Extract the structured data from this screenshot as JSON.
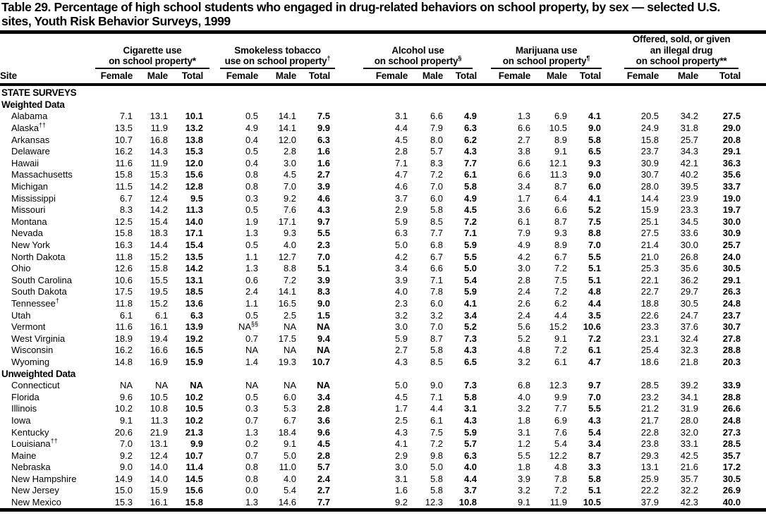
{
  "title": {
    "line1": "Table 29. Percentage of high school students who engaged in drug-related behaviors on school property, by sex — selected U.S.",
    "line2": "sites, Youth Risk Behavior Surveys, 1999"
  },
  "table": {
    "site_header": "Site",
    "sub_headers": [
      "Female",
      "Male",
      "Total"
    ],
    "groups": [
      {
        "name": "cigarette-use",
        "lines": [
          "Cigarette use",
          "on school property*"
        ]
      },
      {
        "name": "smokeless-tobacco-use",
        "lines": [
          "Smokeless tobacco",
          "use on school property^†"
        ]
      },
      {
        "name": "alcohol-use",
        "lines": [
          "Alcohol use",
          "on school property^§"
        ]
      },
      {
        "name": "marijuana-use",
        "lines": [
          "Marijuana use",
          "on school property^¶"
        ]
      },
      {
        "name": "offered-sold-given-illegal-drug",
        "lines": [
          "Offered, sold, or given",
          "an illegal drug",
          "on school property**"
        ]
      }
    ],
    "rows": [
      {
        "type": "section",
        "label": "STATE SURVEYS"
      },
      {
        "type": "section",
        "label": "Weighted Data"
      },
      {
        "type": "data",
        "site": "Alabama",
        "values": [
          "7.1",
          "13.1",
          "10.1",
          "0.5",
          "14.1",
          "7.5",
          "3.1",
          "6.6",
          "4.9",
          "1.3",
          "6.9",
          "4.1",
          "20.5",
          "34.2",
          "27.5"
        ]
      },
      {
        "type": "data",
        "site": "Alaska^††",
        "values": [
          "13.5",
          "11.9",
          "13.2",
          "4.9",
          "14.1",
          "9.9",
          "4.4",
          "7.9",
          "6.3",
          "6.6",
          "10.5",
          "9.0",
          "24.9",
          "31.8",
          "29.0"
        ]
      },
      {
        "type": "data",
        "site": "Arkansas",
        "values": [
          "10.7",
          "16.8",
          "13.8",
          "0.4",
          "12.0",
          "6.3",
          "4.5",
          "8.0",
          "6.2",
          "2.7",
          "8.9",
          "5.8",
          "15.8",
          "25.7",
          "20.8"
        ]
      },
      {
        "type": "data",
        "site": "Delaware",
        "values": [
          "16.2",
          "14.3",
          "15.3",
          "0.5",
          "2.8",
          "1.6",
          "2.8",
          "5.7",
          "4.3",
          "3.8",
          "9.1",
          "6.5",
          "23.7",
          "34.3",
          "29.1"
        ]
      },
      {
        "type": "data",
        "site": "Hawaii",
        "values": [
          "11.6",
          "11.9",
          "12.0",
          "0.4",
          "3.0",
          "1.6",
          "7.1",
          "8.3",
          "7.7",
          "6.6",
          "12.1",
          "9.3",
          "30.9",
          "42.1",
          "36.3"
        ]
      },
      {
        "type": "data",
        "site": "Massachusetts",
        "values": [
          "15.8",
          "15.3",
          "15.6",
          "0.8",
          "4.5",
          "2.7",
          "4.7",
          "7.2",
          "6.1",
          "6.6",
          "11.3",
          "9.0",
          "30.7",
          "40.2",
          "35.6"
        ]
      },
      {
        "type": "data",
        "site": "Michigan",
        "values": [
          "11.5",
          "14.2",
          "12.8",
          "0.8",
          "7.0",
          "3.9",
          "4.6",
          "7.0",
          "5.8",
          "3.4",
          "8.7",
          "6.0",
          "28.0",
          "39.5",
          "33.7"
        ]
      },
      {
        "type": "data",
        "site": "Mississippi",
        "values": [
          "6.7",
          "12.4",
          "9.5",
          "0.3",
          "9.2",
          "4.6",
          "3.7",
          "6.0",
          "4.9",
          "1.7",
          "6.4",
          "4.1",
          "14.4",
          "23.9",
          "19.0"
        ]
      },
      {
        "type": "data",
        "site": "Missouri",
        "values": [
          "8.3",
          "14.2",
          "11.3",
          "0.5",
          "7.6",
          "4.3",
          "2.9",
          "5.8",
          "4.5",
          "3.6",
          "6.6",
          "5.2",
          "15.9",
          "23.3",
          "19.7"
        ]
      },
      {
        "type": "data",
        "site": "Montana",
        "values": [
          "12.5",
          "15.4",
          "14.0",
          "1.9",
          "17.1",
          "9.7",
          "5.9",
          "8.5",
          "7.2",
          "6.1",
          "8.7",
          "7.5",
          "25.1",
          "34.5",
          "30.0"
        ]
      },
      {
        "type": "data",
        "site": "Nevada",
        "values": [
          "15.8",
          "18.3",
          "17.1",
          "1.3",
          "9.3",
          "5.5",
          "6.3",
          "7.7",
          "7.1",
          "7.9",
          "9.3",
          "8.8",
          "27.5",
          "33.6",
          "30.9"
        ]
      },
      {
        "type": "data",
        "site": "New York",
        "values": [
          "16.3",
          "14.4",
          "15.4",
          "0.5",
          "4.0",
          "2.3",
          "5.0",
          "6.8",
          "5.9",
          "4.9",
          "8.9",
          "7.0",
          "21.4",
          "30.0",
          "25.7"
        ]
      },
      {
        "type": "data",
        "site": "North Dakota",
        "values": [
          "11.8",
          "15.2",
          "13.5",
          "1.1",
          "12.7",
          "7.0",
          "4.2",
          "6.7",
          "5.5",
          "4.2",
          "6.7",
          "5.5",
          "21.0",
          "26.8",
          "24.0"
        ]
      },
      {
        "type": "data",
        "site": "Ohio",
        "values": [
          "12.6",
          "15.8",
          "14.2",
          "1.3",
          "8.8",
          "5.1",
          "3.4",
          "6.6",
          "5.0",
          "3.0",
          "7.2",
          "5.1",
          "25.3",
          "35.6",
          "30.5"
        ]
      },
      {
        "type": "data",
        "site": "South Carolina",
        "values": [
          "10.6",
          "15.5",
          "13.1",
          "0.6",
          "7.2",
          "3.9",
          "3.9",
          "7.1",
          "5.4",
          "2.8",
          "7.5",
          "5.1",
          "22.1",
          "36.2",
          "29.1"
        ]
      },
      {
        "type": "data",
        "site": "South Dakota",
        "values": [
          "17.5",
          "19.5",
          "18.5",
          "2.4",
          "14.1",
          "8.3",
          "4.0",
          "7.8",
          "5.9",
          "2.4",
          "7.2",
          "4.8",
          "22.7",
          "29.7",
          "26.3"
        ]
      },
      {
        "type": "data",
        "site": "Tennessee^†",
        "values": [
          "11.8",
          "15.2",
          "13.6",
          "1.1",
          "16.5",
          "9.0",
          "2.3",
          "6.0",
          "4.1",
          "2.6",
          "6.2",
          "4.4",
          "18.8",
          "30.5",
          "24.8"
        ]
      },
      {
        "type": "data",
        "site": "Utah",
        "values": [
          "6.1",
          "6.1",
          "6.3",
          "0.5",
          "2.5",
          "1.5",
          "3.2",
          "3.2",
          "3.4",
          "2.4",
          "4.4",
          "3.5",
          "22.6",
          "24.7",
          "23.7"
        ]
      },
      {
        "type": "data",
        "site": "Vermont",
        "values": [
          "11.6",
          "16.1",
          "13.9",
          "NA^§§",
          "NA",
          "NA",
          "3.0",
          "7.0",
          "5.2",
          "5.6",
          "15.2",
          "10.6",
          "23.3",
          "37.6",
          "30.7"
        ]
      },
      {
        "type": "data",
        "site": "West Virginia",
        "values": [
          "18.9",
          "19.4",
          "19.2",
          "0.7",
          "17.5",
          "9.4",
          "5.9",
          "8.7",
          "7.3",
          "5.2",
          "9.1",
          "7.2",
          "23.1",
          "32.4",
          "27.8"
        ]
      },
      {
        "type": "data",
        "site": "Wisconsin",
        "values": [
          "16.2",
          "16.6",
          "16.5",
          "NA",
          "NA",
          "NA",
          "2.7",
          "5.8",
          "4.3",
          "4.8",
          "7.2",
          "6.1",
          "25.4",
          "32.3",
          "28.8"
        ]
      },
      {
        "type": "data",
        "site": "Wyoming",
        "values": [
          "14.8",
          "16.9",
          "15.9",
          "1.4",
          "19.3",
          "10.7",
          "4.3",
          "8.5",
          "6.5",
          "3.2",
          "6.1",
          "4.7",
          "18.6",
          "21.8",
          "20.3"
        ]
      },
      {
        "type": "section",
        "label": "Unweighted Data"
      },
      {
        "type": "data",
        "site": "Connecticut",
        "values": [
          "NA",
          "NA",
          "NA",
          "NA",
          "NA",
          "NA",
          "5.0",
          "9.0",
          "7.3",
          "6.8",
          "12.3",
          "9.7",
          "28.5",
          "39.2",
          "33.9"
        ]
      },
      {
        "type": "data",
        "site": "Florida",
        "values": [
          "9.6",
          "10.5",
          "10.2",
          "0.5",
          "6.0",
          "3.4",
          "4.5",
          "7.1",
          "5.8",
          "4.0",
          "9.9",
          "7.0",
          "23.2",
          "34.1",
          "28.8"
        ]
      },
      {
        "type": "data",
        "site": "Illinois",
        "values": [
          "10.2",
          "10.8",
          "10.5",
          "0.3",
          "5.3",
          "2.8",
          "1.7",
          "4.4",
          "3.1",
          "3.2",
          "7.7",
          "5.5",
          "21.2",
          "31.9",
          "26.6"
        ]
      },
      {
        "type": "data",
        "site": "Iowa",
        "values": [
          "9.1",
          "11.3",
          "10.2",
          "0.7",
          "6.7",
          "3.6",
          "2.5",
          "6.1",
          "4.3",
          "1.8",
          "6.9",
          "4.3",
          "21.7",
          "28.0",
          "24.8"
        ]
      },
      {
        "type": "data",
        "site": "Kentucky",
        "values": [
          "20.6",
          "21.9",
          "21.3",
          "1.3",
          "18.4",
          "9.6",
          "4.3",
          "7.5",
          "5.9",
          "3.1",
          "7.6",
          "5.4",
          "22.8",
          "32.0",
          "27.3"
        ]
      },
      {
        "type": "data",
        "site": "Louisiana^††",
        "values": [
          "7.0",
          "13.1",
          "9.9",
          "0.2",
          "9.1",
          "4.5",
          "4.1",
          "7.2",
          "5.7",
          "1.2",
          "5.4",
          "3.4",
          "23.8",
          "33.1",
          "28.5"
        ]
      },
      {
        "type": "data",
        "site": "Maine",
        "values": [
          "9.2",
          "12.4",
          "10.7",
          "0.7",
          "5.0",
          "2.8",
          "2.9",
          "9.8",
          "6.3",
          "5.5",
          "12.2",
          "8.7",
          "29.3",
          "42.5",
          "35.7"
        ]
      },
      {
        "type": "data",
        "site": "Nebraska",
        "values": [
          "9.0",
          "14.0",
          "11.4",
          "0.8",
          "11.0",
          "5.7",
          "3.0",
          "5.0",
          "4.0",
          "1.8",
          "4.8",
          "3.3",
          "13.1",
          "21.6",
          "17.2"
        ]
      },
      {
        "type": "data",
        "site": "New Hampshire",
        "values": [
          "14.9",
          "14.0",
          "14.5",
          "0.8",
          "4.0",
          "2.4",
          "3.1",
          "5.8",
          "4.4",
          "3.9",
          "7.8",
          "5.8",
          "25.9",
          "35.7",
          "30.5"
        ]
      },
      {
        "type": "data",
        "site": "New Jersey",
        "values": [
          "15.0",
          "15.9",
          "15.6",
          "0.0",
          "5.4",
          "2.7",
          "1.6",
          "5.8",
          "3.7",
          "3.2",
          "7.2",
          "5.1",
          "22.2",
          "32.2",
          "26.9"
        ]
      },
      {
        "type": "data",
        "site": "New Mexico",
        "values": [
          "15.3",
          "16.1",
          "15.8",
          "1.3",
          "14.6",
          "7.7",
          "9.2",
          "12.3",
          "10.8",
          "9.1",
          "11.9",
          "10.5",
          "37.9",
          "42.3",
          "40.0"
        ]
      }
    ]
  }
}
